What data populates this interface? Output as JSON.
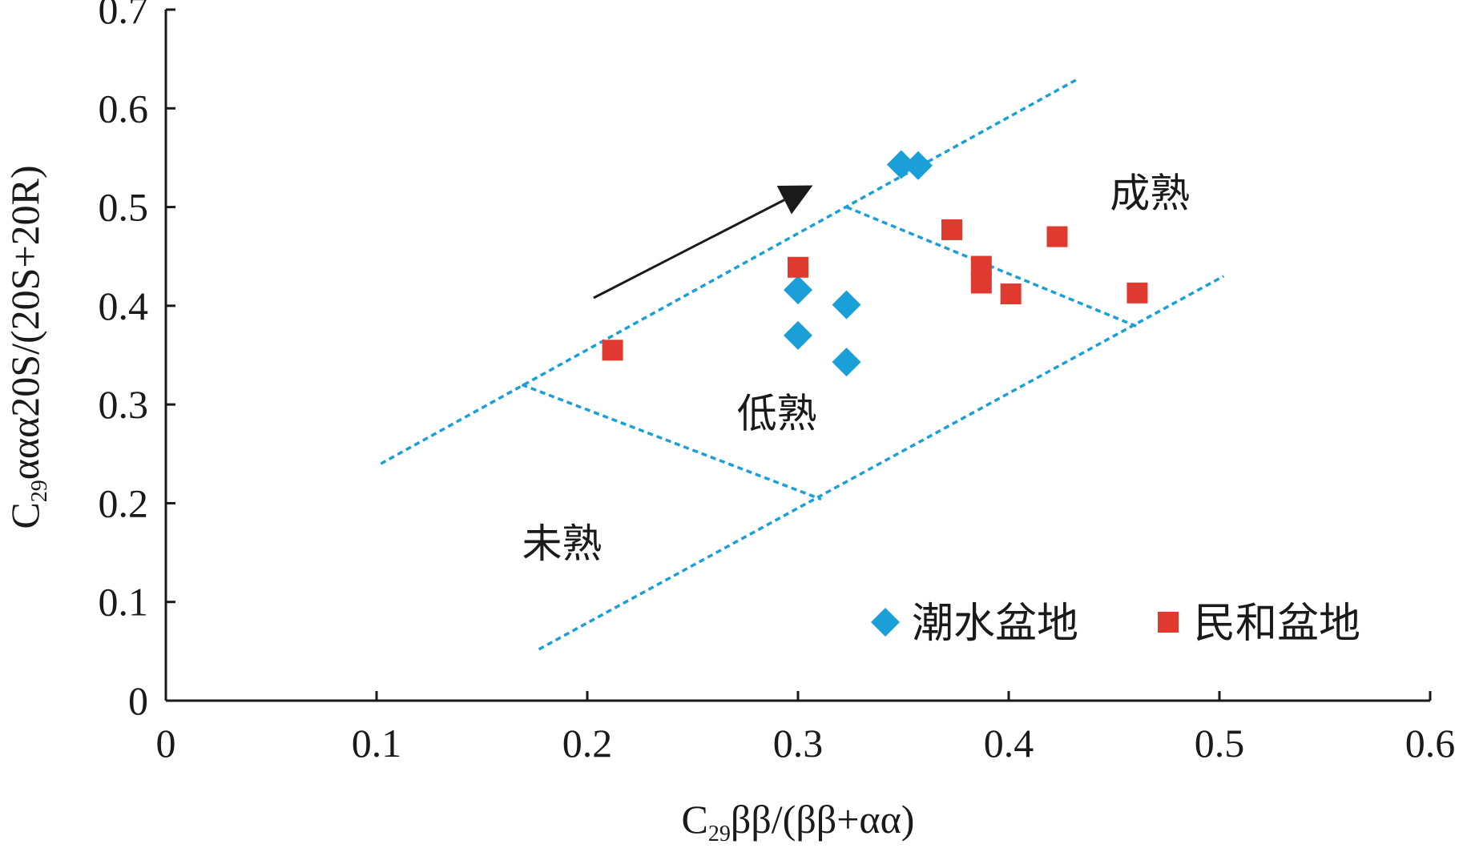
{
  "chart_data": {
    "type": "scatter",
    "x_axis": {
      "range": [
        0,
        0.6
      ],
      "ticks": [
        0,
        0.1,
        0.2,
        0.3,
        0.4,
        0.5,
        0.6
      ],
      "tick_labels": [
        "0",
        "0.1",
        "0.2",
        "0.3",
        "0.4",
        "0.5",
        "0.6"
      ],
      "label_main": "C",
      "label_sub": "29",
      "label_rest": "ββ/(ββ+αα)"
    },
    "y_axis": {
      "range": [
        0,
        0.7
      ],
      "ticks": [
        0,
        0.1,
        0.2,
        0.3,
        0.4,
        0.5,
        0.6,
        0.7
      ],
      "tick_labels": [
        "0",
        "0.1",
        "0.2",
        "0.3",
        "0.4",
        "0.5",
        "0.6",
        "0.7"
      ],
      "label_main": "C",
      "label_sub": "29",
      "label_rest": "ααα20S/(20S+20R)"
    },
    "grid": false,
    "legend_position": "bottom-right",
    "series": [
      {
        "name": "潮水盆地",
        "marker": "diamond",
        "color": "#1a9fd8",
        "points": [
          {
            "x": 0.349,
            "y": 0.543
          },
          {
            "x": 0.357,
            "y": 0.542
          },
          {
            "x": 0.3,
            "y": 0.416
          },
          {
            "x": 0.3,
            "y": 0.37
          },
          {
            "x": 0.323,
            "y": 0.401
          },
          {
            "x": 0.323,
            "y": 0.343
          }
        ]
      },
      {
        "name": "民和盆地",
        "marker": "square",
        "color": "#e03a30",
        "points": [
          {
            "x": 0.212,
            "y": 0.355
          },
          {
            "x": 0.3,
            "y": 0.439
          },
          {
            "x": 0.373,
            "y": 0.477
          },
          {
            "x": 0.387,
            "y": 0.44
          },
          {
            "x": 0.387,
            "y": 0.423
          },
          {
            "x": 0.401,
            "y": 0.412
          },
          {
            "x": 0.423,
            "y": 0.47
          },
          {
            "x": 0.461,
            "y": 0.413
          }
        ]
      }
    ],
    "region_lines": [
      {
        "name": "upper-boundary",
        "color": "#1a9fd8",
        "points": [
          [
            0.102,
            0.24
          ],
          [
            0.433,
            0.63
          ]
        ]
      },
      {
        "name": "lower-boundary",
        "color": "#1a9fd8",
        "points": [
          [
            0.177,
            0.052
          ],
          [
            0.502,
            0.43
          ]
        ]
      },
      {
        "name": "immature-lowmature-divider",
        "color": "#1a9fd8",
        "points": [
          [
            0.169,
            0.32
          ],
          [
            0.311,
            0.204
          ]
        ]
      },
      {
        "name": "lowmature-mature-divider",
        "color": "#1a9fd8",
        "points": [
          [
            0.323,
            0.5
          ],
          [
            0.462,
            0.378
          ]
        ]
      }
    ],
    "region_labels": [
      {
        "text": "未熟",
        "x": 0.188,
        "y": 0.145
      },
      {
        "text": "低熟",
        "x": 0.29,
        "y": 0.277
      },
      {
        "text": "成熟",
        "x": 0.467,
        "y": 0.5
      }
    ],
    "trend_arrow": {
      "from": [
        0.203,
        0.408
      ],
      "to": [
        0.307,
        0.522
      ],
      "color": "#1a1a1a"
    }
  }
}
